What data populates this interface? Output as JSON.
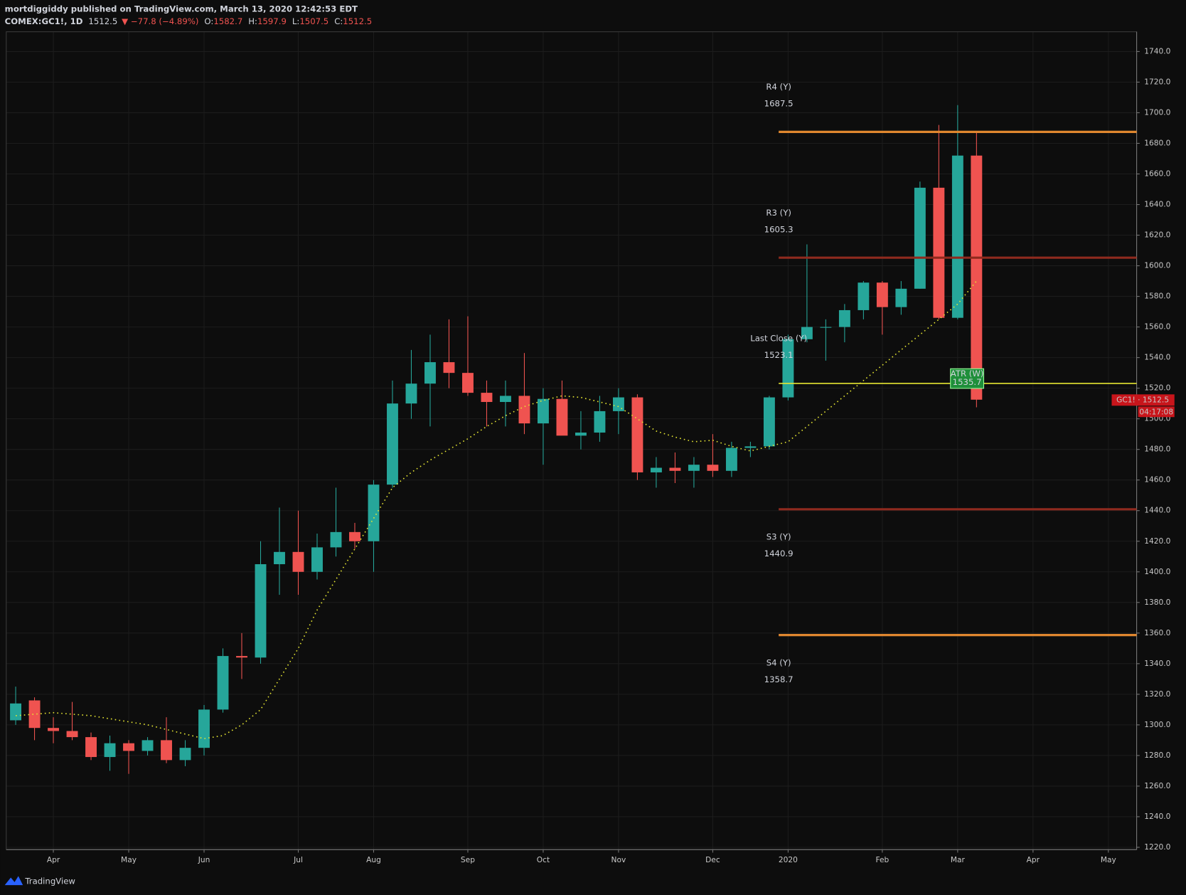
{
  "header": {
    "author_line": "mortdiggiddy published on TradingView.com, March 13, 2020 12:42:53 EDT",
    "symbol": "COMEX:GC1!, 1D",
    "price": 1512.5,
    "change": "▼ −77.8 (−4.89%)",
    "ohlc": [
      {
        "label": "O:",
        "value": 1582.7
      },
      {
        "label": "H:",
        "value": 1597.9
      },
      {
        "label": "L:",
        "value": 1507.5
      },
      {
        "label": "C:",
        "value": 1512.5
      }
    ]
  },
  "footer": {
    "brand": "TradingView"
  },
  "chart_data": {
    "type": "candlestick",
    "categories": [
      null,
      null,
      "Apr",
      null,
      null,
      null,
      "May",
      null,
      null,
      null,
      "Jun",
      null,
      null,
      null,
      null,
      "Jul",
      null,
      null,
      null,
      "Aug",
      null,
      null,
      null,
      null,
      "Sep",
      null,
      null,
      null,
      "Oct",
      null,
      null,
      null,
      "Nov",
      null,
      null,
      null,
      null,
      "Dec",
      null,
      null,
      null,
      "2020",
      null,
      null,
      null,
      null,
      "Feb",
      null,
      null,
      null,
      "Mar",
      null,
      null,
      null,
      "Apr",
      null,
      null,
      null,
      "May",
      null
    ],
    "open": [
      1303,
      1316,
      1298,
      1296,
      1292,
      1279,
      1288,
      1283,
      1290,
      1277,
      1285,
      1310,
      1345,
      1344,
      1405,
      1413,
      1400,
      1416,
      1426,
      1420,
      1457,
      1510,
      1523,
      1537,
      1530,
      1517,
      1511,
      1515,
      1497,
      1513,
      1489,
      1491,
      1505,
      1514,
      1465,
      1468,
      1466,
      1470,
      1466,
      1481,
      1482,
      1514,
      1552,
      1560,
      1560,
      1571,
      1589,
      1573,
      1585,
      1651,
      1566,
      1672,
      null,
      null,
      null,
      null,
      null,
      null,
      null,
      null
    ],
    "high": [
      1325,
      1318,
      1305,
      1315,
      1295,
      1293,
      1290,
      1292,
      1305,
      1290,
      1313,
      1350,
      1360,
      1420,
      1442,
      1440,
      1425,
      1455,
      1432,
      1460,
      1525,
      1545,
      1555,
      1565,
      1567,
      1525,
      1525,
      1543,
      1520,
      1525,
      1505,
      1515,
      1520,
      1516,
      1475,
      1478,
      1475,
      1490,
      1485,
      1485,
      1515,
      1555,
      1614,
      1565,
      1575,
      1590,
      1590,
      1590,
      1655,
      1692,
      1705,
      1688,
      null,
      null,
      null,
      null,
      null,
      null,
      null,
      null
    ],
    "low": [
      1300,
      1290,
      1288,
      1290,
      1277,
      1270,
      1268,
      1280,
      1275,
      1273,
      1280,
      1308,
      1330,
      1340,
      1385,
      1385,
      1395,
      1410,
      1415,
      1400,
      1455,
      1500,
      1495,
      1520,
      1515,
      1495,
      1495,
      1490,
      1470,
      1490,
      1480,
      1485,
      1490,
      1460,
      1455,
      1458,
      1455,
      1462,
      1462,
      1475,
      1480,
      1512,
      1550,
      1538,
      1550,
      1565,
      1555,
      1568,
      1585,
      1565,
      1565,
      1507.5,
      null,
      null,
      null,
      null,
      null,
      null,
      null,
      null
    ],
    "close": [
      1314,
      1298,
      1296,
      1292,
      1279,
      1288,
      1283,
      1290,
      1277,
      1285,
      1310,
      1345,
      1344,
      1405,
      1413,
      1400,
      1416,
      1426,
      1420,
      1457,
      1510,
      1523,
      1537,
      1530,
      1517,
      1511,
      1515,
      1497,
      1513,
      1489,
      1491,
      1505,
      1514,
      1465,
      1468,
      1466,
      1470,
      1466,
      1481,
      1482,
      1514,
      1552,
      1560,
      1560,
      1571,
      1589,
      1573,
      1585,
      1651,
      1566,
      1672,
      1512.5,
      null,
      null,
      null,
      null,
      null,
      null,
      null,
      null
    ],
    "up_color": "#26a69a",
    "down_color": "#ef5350",
    "ma": {
      "color": "#e6e632",
      "values": [
        1306,
        1307,
        1308,
        1307,
        1306,
        1304,
        1302,
        1300,
        1297,
        1294,
        1291,
        1293,
        1300,
        1310,
        1330,
        1350,
        1375,
        1395,
        1415,
        1435,
        1455,
        1465,
        1473,
        1480,
        1487,
        1495,
        1502,
        1508,
        1512,
        1515,
        1514,
        1511,
        1508,
        1500,
        1492,
        1488,
        1485,
        1486,
        1482,
        1479,
        1482,
        1485,
        1495,
        1505,
        1515,
        1525,
        1535,
        1545,
        1555,
        1565,
        1575,
        1590,
        null,
        null,
        null,
        null,
        null,
        null,
        null,
        null
      ]
    },
    "levels": [
      {
        "name": "R4 (Y)",
        "value": 1687.5,
        "color": "#e0872f"
      },
      {
        "name": "R3 (Y)",
        "value": 1605.3,
        "color": "#8f2a1e"
      },
      {
        "name": "S3 (Y)",
        "value": 1440.9,
        "color": "#8f2a1e"
      },
      {
        "name": "S4 (Y)",
        "value": 1358.7,
        "color": "#e0872f"
      },
      {
        "name": "Last Close (Y)",
        "value": 1523.1,
        "color": "#e6e632"
      }
    ],
    "atr": {
      "label": "ATR (W)",
      "value": 1535.7,
      "color": "#1f8f3a"
    },
    "price_tag": {
      "text": "GC1! · 1512.5",
      "value": 1512.5,
      "timer": "04:17:08",
      "color": "#c8151b"
    },
    "ylim": [
      1218.5,
      1752.9
    ],
    "yticks": [
      {
        "value": 1220,
        "label": "1220.0"
      },
      {
        "value": 1240,
        "label": "1240.0"
      },
      {
        "value": 1260,
        "label": "1260.0"
      },
      {
        "value": 1280,
        "label": "1280.0"
      },
      {
        "value": 1300,
        "label": "1300.0"
      },
      {
        "value": 1320,
        "label": "1320.0"
      },
      {
        "value": 1340,
        "label": "1340.0"
      },
      {
        "value": 1360,
        "label": "1360.0"
      },
      {
        "value": 1380,
        "label": "1380.0"
      },
      {
        "value": 1400,
        "label": "1400.0"
      },
      {
        "value": 1420,
        "label": "1420.0"
      },
      {
        "value": 1440,
        "label": "1440.0"
      },
      {
        "value": 1460,
        "label": "1460.0"
      },
      {
        "value": 1480,
        "label": "1480.0"
      },
      {
        "value": 1500,
        "label": "1500.0"
      },
      {
        "value": 1520,
        "label": "1520.0"
      },
      {
        "value": 1540,
        "label": "1540.0"
      },
      {
        "value": 1560,
        "label": "1560.0"
      },
      {
        "value": 1580,
        "label": "1580.0"
      },
      {
        "value": 1600,
        "label": "1600.0"
      },
      {
        "value": 1620,
        "label": "1620.0"
      },
      {
        "value": 1640,
        "label": "1640.0"
      },
      {
        "value": 1660,
        "label": "1660.0"
      },
      {
        "value": 1680,
        "label": "1680.0"
      },
      {
        "value": 1700,
        "label": "1700.0"
      },
      {
        "value": 1720,
        "label": "1720.0"
      },
      {
        "value": 1740,
        "label": "1740.0"
      }
    ],
    "grid": true
  }
}
